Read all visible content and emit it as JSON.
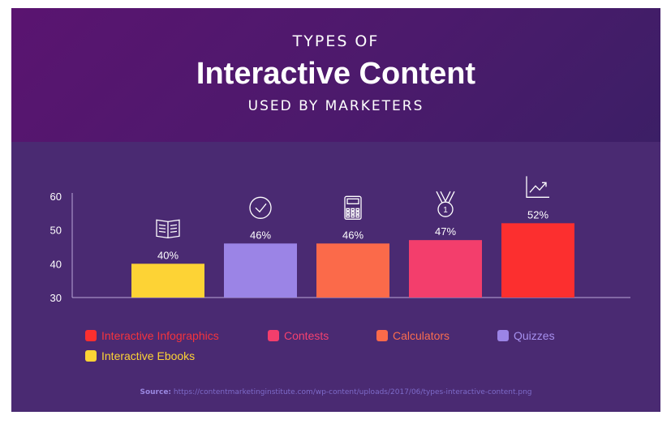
{
  "header": {
    "pre_title": "TYPES OF",
    "main_title": "Interactive Content",
    "sub_title": "USED BY MARKETERS"
  },
  "chart_data": {
    "type": "bar",
    "title": "Interactive Content",
    "categories": [
      "Interactive Ebooks",
      "Quizzes",
      "Calculators",
      "Contests",
      "Interactive Infographics"
    ],
    "values": [
      40,
      46,
      46,
      47,
      52
    ],
    "value_labels": [
      "40%",
      "46%",
      "46%",
      "47%",
      "52%"
    ],
    "icons": [
      "book-icon",
      "check-circle-icon",
      "calculator-icon",
      "medal-icon",
      "trend-chart-icon"
    ],
    "colors": [
      "#fdd335",
      "#9b84e6",
      "#fb6a4a",
      "#f33e6c",
      "#fc2f2f"
    ],
    "ylim": [
      30,
      60
    ],
    "yticks": [
      "30",
      "40",
      "50",
      "60"
    ],
    "grid": false,
    "legend_position": "bottom"
  },
  "legend": [
    {
      "label": "Interactive Infographics",
      "color": "#fc2f2f",
      "text_color": "#f5343c"
    },
    {
      "label": "Contests",
      "color": "#f33e6c",
      "text_color": "#f4416f"
    },
    {
      "label": "Calculators",
      "color": "#fb6a4a",
      "text_color": "#fa6d4f"
    },
    {
      "label": "Quizzes",
      "color": "#9b84e6",
      "text_color": "#a690ee"
    },
    {
      "label": "Interactive Ebooks",
      "color": "#fdd335",
      "text_color": "#fdd335"
    }
  ],
  "source": {
    "prefix": "Source:",
    "url": "https://contentmarketinginstitute.com/wp-content/uploads/2017/06/types-interactive-content.png"
  },
  "colors": {
    "header_bg": "#541670",
    "body_bg": "#4a2a72",
    "axis": "#b9a6d8",
    "text": "#ffffff"
  }
}
